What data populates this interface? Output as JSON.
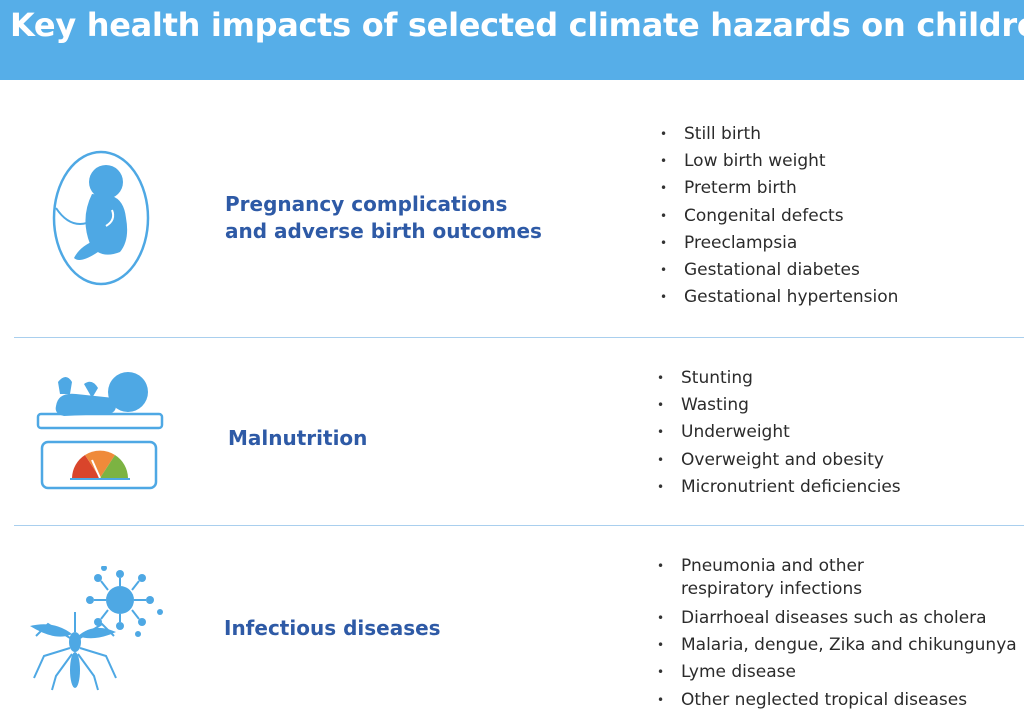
{
  "header": {
    "title": "Key health impacts of selected climate hazards on children"
  },
  "colors": {
    "header_bg": "#56aee8",
    "title_text": "#2e5aa6",
    "icon_fill": "#4ea8e4",
    "divider": "#a9cfee"
  },
  "sections": [
    {
      "icon": "fetus-in-womb-icon",
      "title_lines": [
        "Pregnancy complications",
        "and adverse birth outcomes"
      ],
      "items": [
        "Still birth",
        "Low birth weight",
        "Preterm birth",
        "Congenital defects",
        "Preeclampsia",
        "Gestational diabetes",
        "Gestational hypertension"
      ]
    },
    {
      "icon": "baby-on-scale-icon",
      "title_lines": [
        "Malnutrition"
      ],
      "items": [
        "Stunting",
        "Wasting",
        "Underweight",
        "Overweight and obesity",
        "Micronutrient deficiencies"
      ]
    },
    {
      "icon": "mosquito-virus-icon",
      "title_lines": [
        "Infectious diseases"
      ],
      "items": [
        [
          "Pneumonia and other",
          "respiratory infections"
        ],
        "Diarrhoeal diseases such as cholera",
        "Malaria, dengue, Zika and chikungunya",
        "Lyme disease",
        "Other neglected tropical diseases"
      ]
    }
  ]
}
